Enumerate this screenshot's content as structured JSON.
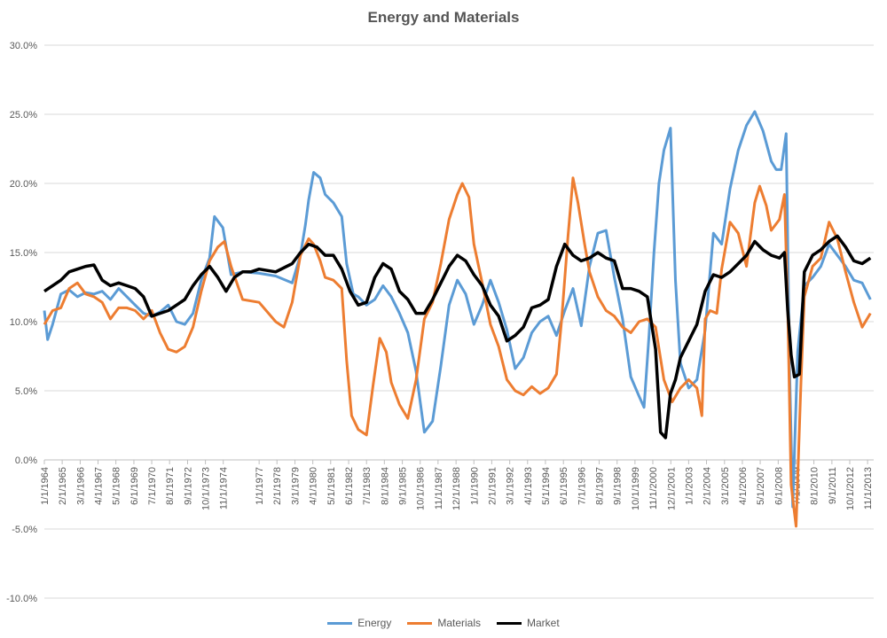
{
  "chart_data": {
    "type": "line",
    "title": "Energy and Materials",
    "xlabel": "",
    "ylabel": "",
    "ylim": [
      -10,
      30
    ],
    "yticks": [
      "-10.0%",
      "-5.0%",
      "0.0%",
      "5.0%",
      "10.0%",
      "15.0%",
      "20.0%",
      "25.0%",
      "30.0%"
    ],
    "ytick_values": [
      -10,
      -5,
      0,
      5,
      10,
      15,
      20,
      25,
      30
    ],
    "xlim": [
      1964.0,
      2014.2
    ],
    "xticks": [
      "1/1/1964",
      "2/1/1965",
      "3/1/1966",
      "4/1/1967",
      "5/1/1968",
      "6/1/1969",
      "7/1/1970",
      "8/1/1971",
      "9/1/1972",
      "10/1/1973",
      "11/1/1974",
      "1/1/1977",
      "2/1/1978",
      "3/1/1979",
      "4/1/1980",
      "5/1/1981",
      "6/1/1982",
      "7/1/1983",
      "8/1/1984",
      "9/1/1985",
      "10/1/1986",
      "11/1/1987",
      "12/1/1988",
      "1/1/1990",
      "2/1/1991",
      "3/1/1992",
      "4/1/1993",
      "5/1/1994",
      "6/1/1995",
      "7/1/1996",
      "8/1/1997",
      "9/1/1998",
      "10/1/1999",
      "11/1/2000",
      "12/1/2001",
      "1/1/2003",
      "2/1/2004",
      "3/1/2005",
      "4/1/2006",
      "5/1/2007",
      "6/1/2008",
      "7/1/2009",
      "8/1/2010",
      "9/1/2011",
      "10/1/2012",
      "11/1/2013"
    ],
    "xtick_values": [
      1964.0,
      1965.08,
      1966.17,
      1967.25,
      1968.33,
      1969.42,
      1970.5,
      1971.58,
      1972.67,
      1973.75,
      1974.83,
      1977.0,
      1978.08,
      1979.17,
      1980.25,
      1981.33,
      1982.42,
      1983.5,
      1984.58,
      1985.67,
      1986.75,
      1987.83,
      1988.92,
      1990.0,
      1991.08,
      1992.17,
      1993.25,
      1994.33,
      1995.42,
      1996.5,
      1997.58,
      1998.67,
      1999.75,
      2000.83,
      2001.92,
      2003.0,
      2004.08,
      2005.17,
      2006.25,
      2007.33,
      2008.42,
      2009.5,
      2010.58,
      2011.67,
      2012.75,
      2013.83
    ],
    "grid": true,
    "legend_position": "bottom",
    "series": [
      {
        "name": "Energy",
        "color": "#5b9bd5",
        "x": [
          1964.0,
          1964.2,
          1964.5,
          1965.0,
          1965.5,
          1966.0,
          1966.5,
          1967.0,
          1967.5,
          1968.0,
          1968.5,
          1969.0,
          1969.5,
          1970.0,
          1970.5,
          1971.0,
          1971.5,
          1972.0,
          1972.5,
          1973.0,
          1973.5,
          1974.0,
          1974.3,
          1974.8,
          1975.3,
          1976.0,
          1977.0,
          1978.0,
          1979.0,
          1979.5,
          1979.8,
          1980.0,
          1980.3,
          1980.7,
          1981.0,
          1981.5,
          1982.0,
          1982.3,
          1982.7,
          1983.0,
          1983.5,
          1984.0,
          1984.5,
          1985.0,
          1985.5,
          1986.0,
          1986.5,
          1987.0,
          1987.5,
          1988.0,
          1988.5,
          1989.0,
          1989.5,
          1990.0,
          1990.5,
          1991.0,
          1991.5,
          1992.0,
          1992.5,
          1993.0,
          1993.5,
          1994.0,
          1994.5,
          1995.0,
          1995.5,
          1996.0,
          1996.5,
          1997.0,
          1997.5,
          1998.0,
          1998.5,
          1999.0,
          1999.5,
          2000.0,
          2000.3,
          2000.6,
          2000.9,
          2001.2,
          2001.5,
          2001.9,
          2002.2,
          2002.5,
          2003.0,
          2003.5,
          2004.0,
          2004.5,
          2005.0,
          2005.5,
          2006.0,
          2006.5,
          2007.0,
          2007.5,
          2008.0,
          2008.3,
          2008.6,
          2008.9,
          2009.1,
          2009.3,
          2009.6,
          2010.0,
          2010.5,
          2011.0,
          2011.5,
          2012.0,
          2012.5,
          2013.0,
          2013.5,
          2014.0
        ],
        "values": [
          10.8,
          8.7,
          9.8,
          12.0,
          12.3,
          11.8,
          12.1,
          12.0,
          12.2,
          11.6,
          12.4,
          11.8,
          11.2,
          10.6,
          10.4,
          10.7,
          11.2,
          10.0,
          9.8,
          10.6,
          13.0,
          14.6,
          17.6,
          16.8,
          13.4,
          13.6,
          13.5,
          13.3,
          12.8,
          14.8,
          17.0,
          18.8,
          20.8,
          20.4,
          19.2,
          18.6,
          17.6,
          14.2,
          12.0,
          11.8,
          11.2,
          11.6,
          12.6,
          11.8,
          10.6,
          9.2,
          6.4,
          2.0,
          2.8,
          6.8,
          11.2,
          13.0,
          12.0,
          9.8,
          11.2,
          13.0,
          11.4,
          9.4,
          6.6,
          7.4,
          9.2,
          10.0,
          10.4,
          9.0,
          10.8,
          12.4,
          9.7,
          14.0,
          16.4,
          16.6,
          13.2,
          10.2,
          6.0,
          4.6,
          3.8,
          9.0,
          15.0,
          20.0,
          22.4,
          24.0,
          13.0,
          7.0,
          5.2,
          5.8,
          9.4,
          16.4,
          15.6,
          19.6,
          22.4,
          24.2,
          25.2,
          23.8,
          21.6,
          21.0,
          21.0,
          23.6,
          7.0,
          -3.4,
          7.8,
          12.6,
          13.2,
          14.0,
          15.6,
          14.8,
          14.0,
          13.0,
          12.8,
          11.6
        ]
      },
      {
        "name": "Materials",
        "color": "#ed7d31",
        "x": [
          1964.0,
          1964.5,
          1965.0,
          1965.5,
          1966.0,
          1966.5,
          1967.0,
          1967.5,
          1968.0,
          1968.5,
          1969.0,
          1969.5,
          1970.0,
          1970.5,
          1971.0,
          1971.5,
          1972.0,
          1972.5,
          1973.0,
          1973.5,
          1974.0,
          1974.5,
          1974.9,
          1975.3,
          1976.0,
          1977.0,
          1978.0,
          1978.5,
          1979.0,
          1979.5,
          1980.0,
          1980.3,
          1980.7,
          1981.0,
          1981.5,
          1982.0,
          1982.3,
          1982.6,
          1983.0,
          1983.5,
          1983.9,
          1984.3,
          1984.7,
          1985.0,
          1985.5,
          1986.0,
          1986.5,
          1987.0,
          1987.5,
          1988.0,
          1988.5,
          1989.0,
          1989.3,
          1989.7,
          1990.0,
          1990.5,
          1991.0,
          1991.5,
          1992.0,
          1992.5,
          1993.0,
          1993.5,
          1994.0,
          1994.5,
          1995.0,
          1995.3,
          1995.7,
          1996.0,
          1996.3,
          1996.7,
          1997.0,
          1997.5,
          1998.0,
          1998.5,
          1999.0,
          1999.5,
          2000.0,
          2000.5,
          2001.0,
          2001.5,
          2002.0,
          2002.5,
          2003.0,
          2003.5,
          2003.8,
          2004.0,
          2004.3,
          2004.7,
          2005.0,
          2005.5,
          2006.0,
          2006.5,
          2007.0,
          2007.3,
          2007.7,
          2008.0,
          2008.5,
          2008.8,
          2009.0,
          2009.2,
          2009.5,
          2009.8,
          2010.0,
          2010.5,
          2011.0,
          2011.5,
          2012.0,
          2012.5,
          2013.0,
          2013.5,
          2014.0
        ],
        "values": [
          9.8,
          10.8,
          11.0,
          12.4,
          12.8,
          12.0,
          11.8,
          11.4,
          10.2,
          11.0,
          11.0,
          10.8,
          10.2,
          10.8,
          9.2,
          8.0,
          7.8,
          8.2,
          9.6,
          12.2,
          14.4,
          15.4,
          15.8,
          14.0,
          11.6,
          11.4,
          10.0,
          9.6,
          11.4,
          14.8,
          16.0,
          15.6,
          14.4,
          13.2,
          13.0,
          12.4,
          7.2,
          3.2,
          2.2,
          1.8,
          5.4,
          8.8,
          7.8,
          5.6,
          4.0,
          3.0,
          5.8,
          10.2,
          11.4,
          14.2,
          17.4,
          19.2,
          20.0,
          19.0,
          15.6,
          12.8,
          9.8,
          8.2,
          5.8,
          5.0,
          4.7,
          5.3,
          4.8,
          5.2,
          6.2,
          10.0,
          16.2,
          20.4,
          18.6,
          15.6,
          13.6,
          11.8,
          10.8,
          10.4,
          9.6,
          9.2,
          10.0,
          10.2,
          9.6,
          5.8,
          4.2,
          5.2,
          5.8,
          5.2,
          3.2,
          10.2,
          10.8,
          10.6,
          13.8,
          17.2,
          16.4,
          14.0,
          18.6,
          19.8,
          18.4,
          16.6,
          17.4,
          19.2,
          11.0,
          -1.8,
          -4.8,
          5.6,
          11.8,
          14.0,
          14.6,
          17.2,
          16.0,
          13.6,
          11.4,
          9.6,
          10.6
        ]
      },
      {
        "name": "Market",
        "color": "#000000",
        "x": [
          1964.0,
          1964.5,
          1965.0,
          1965.5,
          1966.0,
          1966.5,
          1967.0,
          1967.5,
          1968.0,
          1968.5,
          1969.0,
          1969.5,
          1970.0,
          1970.5,
          1971.0,
          1971.5,
          1972.0,
          1972.5,
          1973.0,
          1973.5,
          1974.0,
          1974.5,
          1975.0,
          1975.5,
          1976.0,
          1976.5,
          1977.0,
          1978.0,
          1979.0,
          1979.5,
          1980.0,
          1980.5,
          1981.0,
          1981.5,
          1982.0,
          1982.5,
          1983.0,
          1983.5,
          1984.0,
          1984.5,
          1985.0,
          1985.5,
          1986.0,
          1986.5,
          1987.0,
          1987.5,
          1988.0,
          1988.5,
          1989.0,
          1989.5,
          1990.0,
          1990.5,
          1991.0,
          1991.5,
          1992.0,
          1992.5,
          1993.0,
          1993.5,
          1994.0,
          1994.5,
          1995.0,
          1995.5,
          1996.0,
          1996.5,
          1997.0,
          1997.5,
          1998.0,
          1998.5,
          1999.0,
          1999.5,
          2000.0,
          2000.5,
          2001.0,
          2001.3,
          2001.6,
          2001.9,
          2002.2,
          2002.5,
          2003.0,
          2003.5,
          2004.0,
          2004.5,
          2005.0,
          2005.5,
          2006.0,
          2006.5,
          2007.0,
          2007.5,
          2008.0,
          2008.5,
          2008.8,
          2009.0,
          2009.2,
          2009.4,
          2009.7,
          2010.0,
          2010.5,
          2011.0,
          2011.5,
          2012.0,
          2012.5,
          2013.0,
          2013.5,
          2014.0
        ],
        "values": [
          12.2,
          12.6,
          13.0,
          13.6,
          13.8,
          14.0,
          14.1,
          13.0,
          12.6,
          12.8,
          12.6,
          12.4,
          11.8,
          10.4,
          10.6,
          10.8,
          11.2,
          11.6,
          12.6,
          13.4,
          14.0,
          13.2,
          12.2,
          13.2,
          13.6,
          13.6,
          13.8,
          13.6,
          14.2,
          15.0,
          15.6,
          15.4,
          14.8,
          14.8,
          13.8,
          12.2,
          11.2,
          11.4,
          13.2,
          14.2,
          13.8,
          12.2,
          11.6,
          10.6,
          10.6,
          11.6,
          12.8,
          14.0,
          14.8,
          14.4,
          13.4,
          12.6,
          11.2,
          10.4,
          8.6,
          9.0,
          9.6,
          11.0,
          11.2,
          11.6,
          14.0,
          15.6,
          14.8,
          14.4,
          14.6,
          15.0,
          14.6,
          14.4,
          12.4,
          12.4,
          12.2,
          11.8,
          8.0,
          2.0,
          1.6,
          4.8,
          5.8,
          7.4,
          8.6,
          9.8,
          12.2,
          13.4,
          13.2,
          13.6,
          14.2,
          14.8,
          15.8,
          15.2,
          14.8,
          14.6,
          15.0,
          10.8,
          7.6,
          6.0,
          6.2,
          13.6,
          14.8,
          15.2,
          15.8,
          16.2,
          15.4,
          14.4,
          14.2,
          14.6
        ]
      }
    ]
  }
}
